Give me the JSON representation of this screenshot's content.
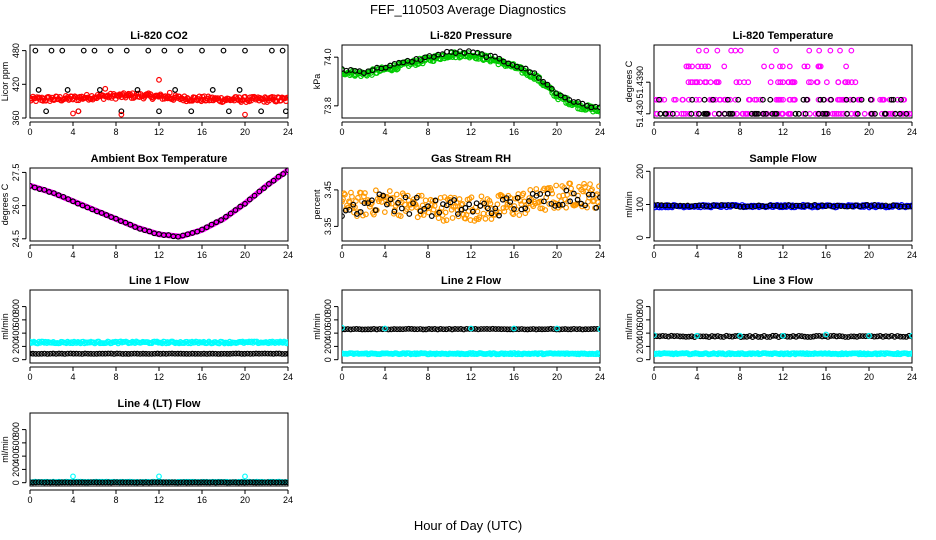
{
  "figure": {
    "title": "FEF_110503  Average Diagnostics",
    "xlabel": "Hour of Day (UTC)"
  },
  "chart_data": [
    {
      "type": "scatter",
      "title": "Li-820 CO2",
      "ylabel": "Licor ppm",
      "xlim": [
        0,
        24
      ],
      "ylim": [
        360,
        490
      ],
      "xticks": [
        0,
        4,
        8,
        12,
        16,
        20,
        24
      ],
      "yticks": [
        360,
        420,
        480
      ],
      "ytick_labels": [
        "360",
        "420",
        "480"
      ],
      "colors": {
        "primary": "#ff0000",
        "secondary": "#000000"
      },
      "series": [
        {
          "kind": "dense",
          "color": "#ff0000",
          "x": [
            0,
            2,
            4,
            6,
            8,
            10,
            12,
            14,
            16,
            18,
            20,
            22,
            24
          ],
          "y": [
            393,
            394,
            395,
            398,
            399,
            400,
            398,
            395,
            394,
            393,
            393,
            393,
            393
          ],
          "jitter": 5
        },
        {
          "kind": "points",
          "color": "#000000",
          "x": [
            0.5,
            2,
            3,
            5,
            6,
            7.5,
            9,
            11,
            12.5,
            14,
            16,
            18,
            20,
            22.5,
            23.5,
            0.8,
            3.5,
            6.5,
            10,
            13.5,
            17,
            19.5,
            1.5,
            4.5,
            8.5,
            12,
            15,
            18.5,
            21.5,
            23.8
          ],
          "y": [
            480,
            480,
            480,
            480,
            480,
            480,
            480,
            480,
            480,
            480,
            480,
            480,
            480,
            480,
            480,
            410,
            410,
            410,
            410,
            410,
            410,
            410,
            372,
            372,
            372,
            372,
            372,
            372,
            372,
            372
          ]
        },
        {
          "kind": "points",
          "color": "#ff0000",
          "x": [
            4,
            7,
            12,
            13,
            4.5,
            8.5,
            20
          ],
          "y": [
            368,
            412,
            428,
            405,
            372,
            366,
            366
          ]
        }
      ]
    },
    {
      "type": "scatter",
      "title": "Li-820 Pressure",
      "ylabel": "kPa",
      "xlim": [
        0,
        24
      ],
      "ylim": [
        73.75,
        74.05
      ],
      "xticks": [
        0,
        4,
        8,
        12,
        16,
        20,
        24
      ],
      "yticks": [
        73.8,
        74.0
      ],
      "ytick_labels": [
        "73.8",
        "74.0"
      ],
      "series": [
        {
          "kind": "dense",
          "color": "#00cc00",
          "x": [
            0,
            2,
            4,
            6,
            8,
            10,
            12,
            14,
            16,
            18,
            20,
            22,
            24
          ],
          "y": [
            73.94,
            73.93,
            73.95,
            73.97,
            73.99,
            74.01,
            74.01,
            73.99,
            73.96,
            73.92,
            73.84,
            73.8,
            73.78
          ],
          "jitter": 0.012
        },
        {
          "kind": "curve-points",
          "color": "#000000",
          "x": [
            0,
            2,
            4,
            6,
            8,
            10,
            12,
            14,
            16,
            18,
            20,
            22,
            24
          ],
          "y": [
            73.95,
            73.94,
            73.96,
            73.98,
            74.0,
            74.02,
            74.02,
            74.0,
            73.97,
            73.93,
            73.85,
            73.81,
            73.79
          ],
          "count": 60,
          "jitter": 0.006
        }
      ]
    },
    {
      "type": "scatter",
      "title": "Li-820 Temperature",
      "ylabel": "degrees C",
      "xlim": [
        0,
        24
      ],
      "ylim": [
        51.4288,
        51.4496
      ],
      "xticks": [
        0,
        4,
        8,
        12,
        16,
        20,
        24
      ],
      "yticks": [
        51.43,
        51.439
      ],
      "ytick_labels": [
        "51.430",
        "51.4390"
      ],
      "series": [
        {
          "kind": "levels",
          "color": "#ff00ff",
          "levels": [
            51.43,
            51.434,
            51.439,
            51.4435,
            51.448
          ],
          "x_range": [
            0,
            24
          ],
          "count": [
            80,
            70,
            40,
            20,
            12
          ]
        },
        {
          "kind": "levels",
          "color": "#000000",
          "levels": [
            51.43,
            51.434
          ],
          "x_range": [
            0,
            24
          ],
          "count": [
            40,
            20
          ]
        }
      ]
    },
    {
      "type": "scatter",
      "title": "Ambient Box Temperature",
      "ylabel": "degrees C",
      "xlim": [
        0,
        24
      ],
      "ylim": [
        24.4,
        27.7
      ],
      "xticks": [
        0,
        4,
        8,
        12,
        16,
        20,
        24
      ],
      "yticks": [
        24.5,
        26.0,
        27.5
      ],
      "ytick_labels": [
        "24.5",
        "26.0",
        "27.5"
      ],
      "series": [
        {
          "kind": "curve-dense",
          "color": "#ff00ff",
          "x": [
            0,
            2,
            4,
            6,
            8,
            10,
            12,
            14,
            16,
            18,
            20,
            22,
            24
          ],
          "y": [
            26.9,
            26.6,
            26.2,
            25.8,
            25.4,
            25.0,
            24.7,
            24.6,
            24.9,
            25.4,
            26.1,
            26.9,
            27.6
          ],
          "count": 240
        },
        {
          "kind": "curve-points",
          "color": "#000000",
          "x": [
            0,
            2,
            4,
            6,
            8,
            10,
            12,
            14,
            16,
            18,
            20,
            22,
            24
          ],
          "y": [
            26.9,
            26.6,
            26.2,
            25.8,
            25.4,
            25.0,
            24.7,
            24.6,
            24.9,
            25.4,
            26.1,
            26.9,
            27.6
          ],
          "count": 55,
          "jitter": 0.02
        }
      ]
    },
    {
      "type": "scatter",
      "title": "Gas Stream RH",
      "ylabel": "percent",
      "xlim": [
        0,
        24
      ],
      "ylim": [
        3.31,
        3.51
      ],
      "xticks": [
        0,
        4,
        8,
        12,
        16,
        20,
        24
      ],
      "yticks": [
        3.35,
        3.45
      ],
      "ytick_labels": [
        "3.35",
        "3.45"
      ],
      "series": [
        {
          "kind": "dense",
          "color": "#ff9900",
          "x": [
            0,
            2,
            4,
            6,
            8,
            10,
            12,
            14,
            16,
            18,
            20,
            22,
            24
          ],
          "y": [
            3.41,
            3.41,
            3.42,
            3.41,
            3.4,
            3.4,
            3.4,
            3.4,
            3.41,
            3.42,
            3.43,
            3.44,
            3.43
          ],
          "jitter": 0.035
        },
        {
          "kind": "scatter-band",
          "color": "#000000",
          "x": [
            0,
            2,
            4,
            6,
            8,
            10,
            12,
            14,
            16,
            18,
            20,
            22,
            24
          ],
          "y": [
            3.39,
            3.41,
            3.42,
            3.41,
            3.4,
            3.4,
            3.4,
            3.4,
            3.41,
            3.42,
            3.43,
            3.44,
            3.41
          ],
          "count": 70,
          "jitter": 0.025
        }
      ]
    },
    {
      "type": "scatter",
      "title": "Sample Flow",
      "ylabel": "ml/min",
      "xlim": [
        0,
        24
      ],
      "ylim": [
        -10,
        210
      ],
      "xticks": [
        0,
        4,
        8,
        12,
        16,
        20,
        24
      ],
      "yticks": [
        0,
        100,
        200
      ],
      "ytick_labels": [
        "0",
        "100",
        "200"
      ],
      "series": [
        {
          "kind": "flat-dense",
          "color": "#0000ff",
          "y": 95,
          "x_range": [
            0,
            24
          ],
          "jitter": 4
        },
        {
          "kind": "flat-points",
          "color": "#000000",
          "y": 96,
          "x_range": [
            0,
            24
          ],
          "count": 70,
          "jitter": 3
        }
      ]
    },
    {
      "type": "scatter",
      "title": "Line 1 Flow",
      "ylabel": "ml/min",
      "xlim": [
        0,
        24
      ],
      "ylim": [
        -50,
        1050
      ],
      "xticks": [
        0,
        4,
        8,
        12,
        16,
        20,
        24
      ],
      "yticks": [
        0,
        200,
        400,
        600,
        800
      ],
      "ytick_labels": [
        "0",
        "200",
        "400",
        "600",
        "800"
      ],
      "series": [
        {
          "kind": "flat-dense",
          "color": "#00ffff",
          "y": 260,
          "x_range": [
            0,
            24
          ],
          "jitter": 15
        },
        {
          "kind": "flat-points",
          "color": "#000000",
          "y": 90,
          "x_range": [
            0,
            24
          ],
          "count": 90,
          "jitter": 3
        }
      ]
    },
    {
      "type": "scatter",
      "title": "Line 2 Flow",
      "ylabel": "ml/min",
      "xlim": [
        0,
        24
      ],
      "ylim": [
        -50,
        1050
      ],
      "xticks": [
        0,
        4,
        8,
        12,
        16,
        20,
        24
      ],
      "yticks": [
        0,
        200,
        400,
        600,
        800
      ],
      "ytick_labels": [
        "0",
        "200",
        "400",
        "600",
        "800"
      ],
      "series": [
        {
          "kind": "flat-dense",
          "color": "#00ffff",
          "y": 90,
          "x_range": [
            0,
            24
          ],
          "jitter": 10
        },
        {
          "kind": "flat-points",
          "color": "#000000",
          "y": 460,
          "x_range": [
            0,
            24
          ],
          "count": 90,
          "jitter": 5
        },
        {
          "kind": "points",
          "color": "#00ffff",
          "x": [
            0,
            4,
            12,
            16,
            20,
            24
          ],
          "y": [
            480,
            470,
            470,
            470,
            470,
            460
          ]
        }
      ]
    },
    {
      "type": "scatter",
      "title": "Line 3 Flow",
      "ylabel": "ml/min",
      "xlim": [
        0,
        24
      ],
      "ylim": [
        -50,
        1050
      ],
      "xticks": [
        0,
        4,
        8,
        12,
        16,
        20,
        24
      ],
      "yticks": [
        0,
        200,
        400,
        600,
        800
      ],
      "ytick_labels": [
        "0",
        "200",
        "400",
        "600",
        "800"
      ],
      "series": [
        {
          "kind": "flat-dense",
          "color": "#00ffff",
          "y": 90,
          "x_range": [
            0,
            24
          ],
          "jitter": 10
        },
        {
          "kind": "flat-points",
          "color": "#000000",
          "y": 350,
          "x_range": [
            0,
            24
          ],
          "count": 90,
          "jitter": 10
        },
        {
          "kind": "points",
          "color": "#00ffff",
          "x": [
            0,
            4,
            8,
            12,
            16,
            20,
            24
          ],
          "y": [
            370,
            360,
            360,
            360,
            380,
            360,
            360
          ]
        }
      ]
    },
    {
      "type": "scatter",
      "title": "Line 4 (LT) Flow",
      "ylabel": "ml/min",
      "xlim": [
        0,
        24
      ],
      "ylim": [
        -50,
        1050
      ],
      "xticks": [
        0,
        4,
        8,
        12,
        16,
        20,
        24
      ],
      "yticks": [
        0,
        200,
        400,
        600,
        800
      ],
      "ytick_labels": [
        "0",
        "200",
        "400",
        "600",
        "800"
      ],
      "series": [
        {
          "kind": "flat-dense",
          "color": "#00ffff",
          "y": 10,
          "x_range": [
            0,
            24
          ],
          "jitter": 5
        },
        {
          "kind": "flat-points",
          "color": "#000000",
          "y": 5,
          "x_range": [
            0,
            24
          ],
          "count": 90,
          "jitter": 2
        },
        {
          "kind": "points",
          "color": "#00ffff",
          "x": [
            4,
            12,
            20
          ],
          "y": [
            95,
            95,
            95
          ]
        }
      ]
    }
  ]
}
